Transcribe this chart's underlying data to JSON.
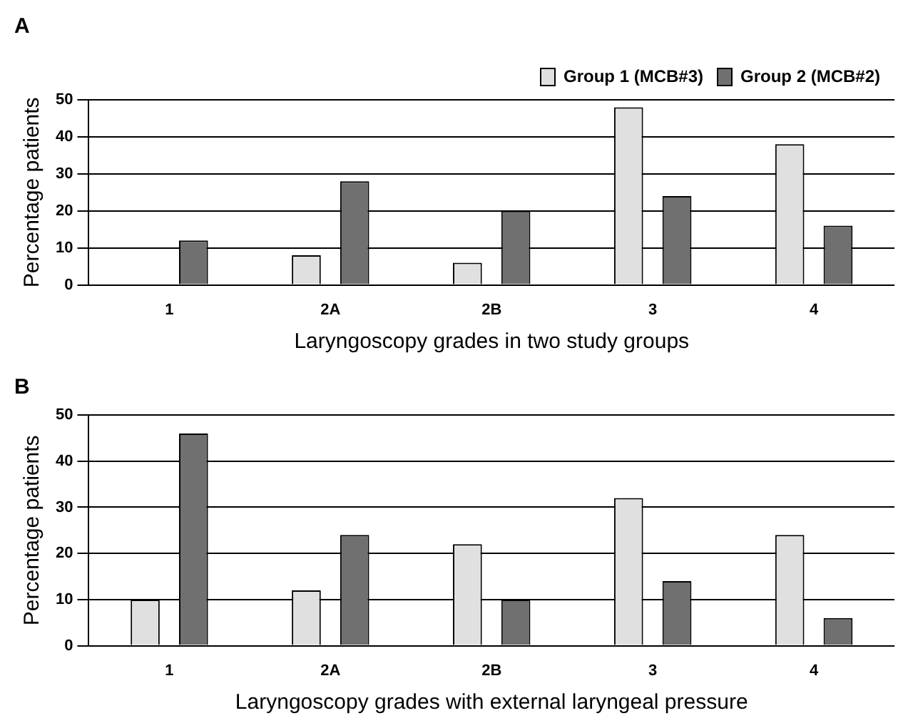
{
  "chart_data": [
    {
      "type": "bar",
      "title": "A",
      "xlabel": "Laryngoscopy grades in two study groups",
      "ylabel": "Percentage patients",
      "categories": [
        "1",
        "2A",
        "2B",
        "3",
        "4"
      ],
      "series": [
        {
          "name": "Group 1 (MCB#3)",
          "color": "#e0e0e0",
          "values": [
            0,
            8,
            6,
            48,
            38
          ]
        },
        {
          "name": "Group 2 (MCB#2)",
          "color": "#707070",
          "values": [
            12,
            28,
            20,
            24,
            16
          ]
        }
      ],
      "ylim": [
        0,
        50
      ],
      "yticks": [
        0,
        10,
        20,
        30,
        40,
        50
      ],
      "grid": "y",
      "legend": "top right"
    },
    {
      "type": "bar",
      "title": "B",
      "xlabel": "Laryngoscopy grades with external laryngeal pressure",
      "ylabel": "Percentage patients",
      "categories": [
        "1",
        "2A",
        "2B",
        "3",
        "4"
      ],
      "series": [
        {
          "color": "#e0e0e0",
          "values": [
            10,
            12,
            22,
            32,
            24
          ]
        },
        {
          "color": "#707070",
          "values": [
            46,
            24,
            10,
            14,
            6
          ]
        }
      ],
      "ylim": [
        0,
        50
      ],
      "yticks": [
        0,
        10,
        20,
        30,
        40,
        50
      ],
      "grid": "y"
    }
  ]
}
